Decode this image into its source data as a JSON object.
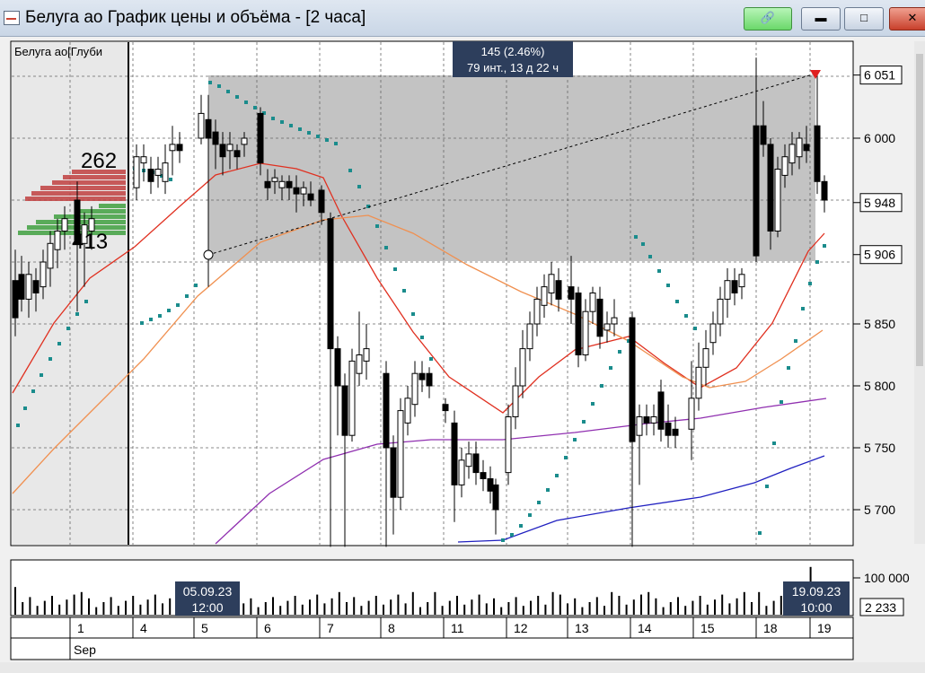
{
  "window": {
    "title": "Белуга ао График цены и объёма - [2 часа]",
    "buttons": {
      "link": "link-icon",
      "minimize": "minimize-icon",
      "maximize": "maximize-icon",
      "close": "close-icon"
    }
  },
  "chart": {
    "depth_label": "Белуга ао[Глуби",
    "depth_ask_volume": "262",
    "depth_bid_volume": "413",
    "measure_line1": "145 (2.46%)",
    "measure_line2": "79 инт., 13 д 22 ч",
    "price_labels": [
      "6 051",
      "6 000",
      "5 948",
      "5 906",
      "5 850",
      "5 800",
      "5 750",
      "5 700"
    ],
    "volume_labels": [
      "100 000",
      "2 233"
    ],
    "cursor_left": [
      "05.09.23",
      "12:00"
    ],
    "cursor_right": [
      "19.09.23",
      "10:00"
    ],
    "day_labels": [
      "1",
      "4",
      "5",
      "6",
      "7",
      "8",
      "11",
      "12",
      "13",
      "14",
      "15",
      "18",
      "19"
    ],
    "month_label": "Sep"
  },
  "colors": {
    "up_candle": "#ffffff",
    "down_candle": "#000000",
    "ma_fast": "#e03020",
    "ma_mid": "#f09050",
    "ma_slow": "#9030b0",
    "ma_long": "#2020c0",
    "sar": "#1a8c8c",
    "ask_depth": "#c04040",
    "bid_depth": "#40a040"
  },
  "chart_data": {
    "type": "candlestick",
    "instrument": "Белуга ао",
    "timeframe": "2 часа",
    "y_range": [
      5675,
      6085
    ],
    "measure": {
      "from_price": 5906,
      "to_price": 6051,
      "change": "145 (2.46%)",
      "span": "79 инт., 13 д 22 ч"
    }
  }
}
